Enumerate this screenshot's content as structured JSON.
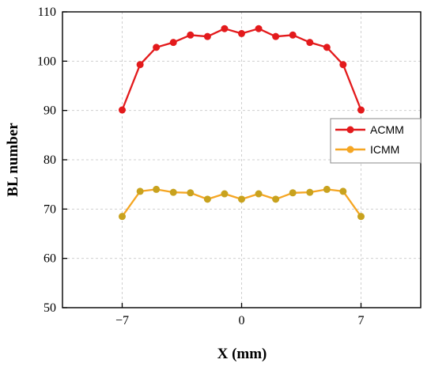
{
  "chart_data": {
    "type": "line",
    "xlabel": "X (mm)",
    "ylabel": "BL number",
    "xlim": [
      -10.5,
      10.5
    ],
    "ylim": [
      50,
      110
    ],
    "xticks": [
      -7,
      0,
      7
    ],
    "xtick_labels": [
      "−7",
      "0",
      "7"
    ],
    "yticks": [
      50,
      60,
      70,
      80,
      90,
      100,
      110
    ],
    "grid": "dashed",
    "legend_position": "right",
    "series": [
      {
        "name": "ACMM",
        "color": "#e31a1c",
        "marker_color": "#e31a1c",
        "x": [
          -7,
          -5.95,
          -5,
          -4,
          -3,
          -2,
          -1,
          0,
          1,
          2,
          3,
          4,
          5,
          5.95,
          7
        ],
        "y": [
          90.1,
          99.3,
          102.8,
          103.8,
          105.3,
          105.0,
          106.6,
          105.6,
          106.6,
          105.0,
          105.3,
          103.8,
          102.8,
          99.3,
          90.1
        ]
      },
      {
        "name": "ICMM",
        "color": "#f5a623",
        "marker_color": "#c8a21e",
        "x": [
          -7,
          -5.95,
          -5,
          -4,
          -3,
          -2,
          -1,
          0,
          1,
          2,
          3,
          4,
          5,
          5.95,
          7
        ],
        "y": [
          68.5,
          73.6,
          74.0,
          73.4,
          73.3,
          72.0,
          73.1,
          72.0,
          73.1,
          72.0,
          73.3,
          73.4,
          74.0,
          73.6,
          68.5
        ]
      }
    ]
  }
}
